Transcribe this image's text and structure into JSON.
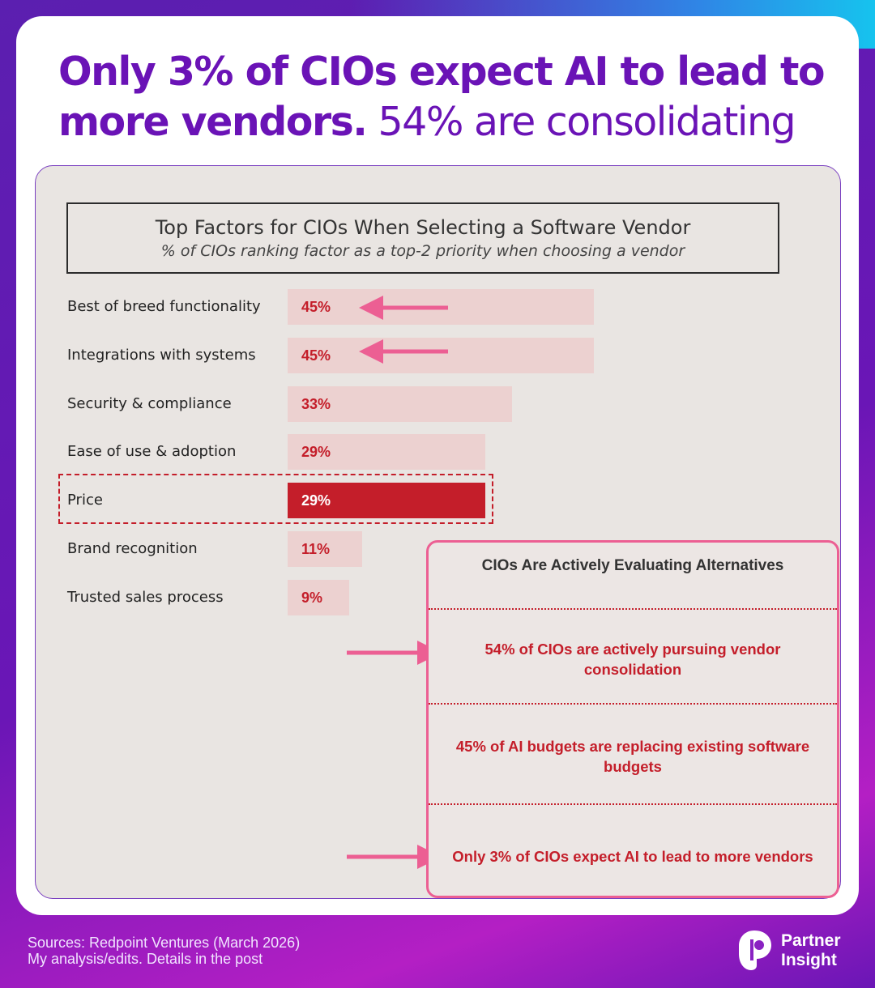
{
  "headline": {
    "bold": "Only 3% of CIOs expect AI to lead to more vendors.",
    "regular": "54% are consolidating"
  },
  "chart_data": {
    "type": "bar",
    "title": "Top Factors for CIOs When Selecting a Software Vendor",
    "subtitle": "% of CIOs ranking factor as a top-2 priority when choosing a vendor",
    "unit": "%",
    "categories": [
      "Best of breed functionality",
      "Integrations with systems",
      "Security & compliance",
      "Ease of use & adoption",
      "Price",
      "Brand recognition",
      "Trusted sales process"
    ],
    "values": [
      45,
      45,
      33,
      29,
      29,
      11,
      9
    ],
    "value_labels": [
      "45%",
      "45%",
      "33%",
      "29%",
      "29%",
      "11%",
      "9%"
    ],
    "highlighted": [
      "Price"
    ],
    "arrowed": [
      "Best of breed functionality",
      "Integrations with systems"
    ],
    "colors": {
      "bar": "#ecd1d0",
      "highlight": "#c41e2a",
      "label": "#c41e2a"
    }
  },
  "callout": {
    "title": "CIOs Are Actively Evaluating Alternatives",
    "stats": [
      "54% of CIOs are actively pursuing vendor consolidation",
      "45% of AI budgets are replacing existing software budgets",
      "Only 3% of CIOs expect AI to lead to more vendors"
    ],
    "border_color": "#ec5f93"
  },
  "footer": {
    "source_line1": "Sources: Redpoint Ventures (March 2026)",
    "source_line2": "My analysis/edits. Details in the post",
    "brand_line1": "Partner",
    "brand_line2": "Insight"
  }
}
